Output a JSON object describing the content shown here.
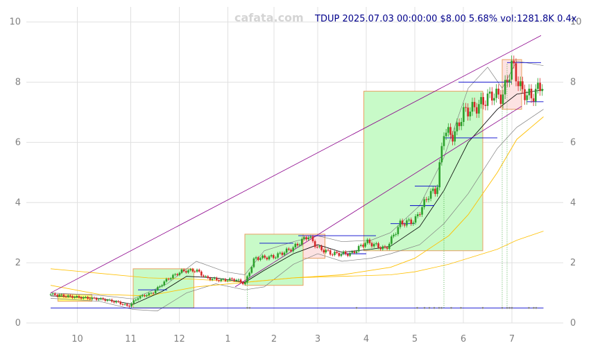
{
  "watermark": "cafata.com",
  "title": "TDUP 2025.07.03 00:00:00 $8.00 5.68% vol:1281.8K 0.4x",
  "chart_data": {
    "type": "candlestick",
    "x_tick_labels": [
      "10",
      "11",
      "12",
      "1",
      "2",
      "3",
      "4",
      "5",
      "6",
      "7"
    ],
    "x_tick_positions_month": [
      0.55,
      1.65,
      2.65,
      3.65,
      4.6,
      5.5,
      6.5,
      7.5,
      8.5,
      9.5
    ],
    "ylim": [
      0,
      10.5
    ],
    "y_ticks": [
      0,
      2,
      4,
      6,
      8,
      10
    ],
    "grid": true,
    "colors": {
      "up": "#2ca02c",
      "down": "#d62728",
      "box_up_fill": "#c8fac8",
      "box_down_fill": "#fde2e2",
      "box_edge": "#e8a060",
      "ma_fast": "#000000",
      "ma_band": "#808080",
      "ma_slow": "#ffc000",
      "trend": "#8b008b",
      "level": "#0000cd"
    },
    "close_series": [
      {
        "m": 0.0,
        "v": 0.95
      },
      {
        "m": 0.4,
        "v": 0.88
      },
      {
        "m": 0.8,
        "v": 0.82
      },
      {
        "m": 1.1,
        "v": 0.78
      },
      {
        "m": 1.4,
        "v": 0.68
      },
      {
        "m": 1.6,
        "v": 0.55
      },
      {
        "m": 1.8,
        "v": 0.85
      },
      {
        "m": 2.1,
        "v": 1.0
      },
      {
        "m": 2.4,
        "v": 1.45
      },
      {
        "m": 2.7,
        "v": 1.72
      },
      {
        "m": 3.0,
        "v": 1.75
      },
      {
        "m": 3.2,
        "v": 1.5
      },
      {
        "m": 3.5,
        "v": 1.42
      },
      {
        "m": 3.8,
        "v": 1.45
      },
      {
        "m": 4.0,
        "v": 1.3
      },
      {
        "m": 4.2,
        "v": 2.15
      },
      {
        "m": 4.6,
        "v": 2.2
      },
      {
        "m": 5.0,
        "v": 2.5
      },
      {
        "m": 5.3,
        "v": 2.9
      },
      {
        "m": 5.5,
        "v": 2.5
      },
      {
        "m": 5.8,
        "v": 2.3
      },
      {
        "m": 6.2,
        "v": 2.3
      },
      {
        "m": 6.5,
        "v": 2.7
      },
      {
        "m": 6.9,
        "v": 2.45
      },
      {
        "m": 7.2,
        "v": 3.3
      },
      {
        "m": 7.5,
        "v": 3.4
      },
      {
        "m": 7.8,
        "v": 4.3
      },
      {
        "m": 7.95,
        "v": 4.4
      },
      {
        "m": 8.1,
        "v": 6.4
      },
      {
        "m": 8.3,
        "v": 6.2
      },
      {
        "m": 8.5,
        "v": 7.0
      },
      {
        "m": 8.8,
        "v": 7.2
      },
      {
        "m": 9.1,
        "v": 7.6
      },
      {
        "m": 9.3,
        "v": 7.5
      },
      {
        "m": 9.5,
        "v": 8.6
      },
      {
        "m": 9.7,
        "v": 7.7
      },
      {
        "m": 9.9,
        "v": 7.5
      },
      {
        "m": 10.15,
        "v": 8.0
      }
    ],
    "ma_fast": [
      {
        "m": 0.0,
        "v": 0.9
      },
      {
        "m": 1.0,
        "v": 0.82
      },
      {
        "m": 1.7,
        "v": 0.62
      },
      {
        "m": 2.3,
        "v": 1.05
      },
      {
        "m": 2.8,
        "v": 1.55
      },
      {
        "m": 3.4,
        "v": 1.5
      },
      {
        "m": 4.0,
        "v": 1.35
      },
      {
        "m": 4.4,
        "v": 1.75
      },
      {
        "m": 5.0,
        "v": 2.3
      },
      {
        "m": 5.5,
        "v": 2.6
      },
      {
        "m": 6.0,
        "v": 2.35
      },
      {
        "m": 6.6,
        "v": 2.45
      },
      {
        "m": 7.0,
        "v": 2.55
      },
      {
        "m": 7.6,
        "v": 3.2
      },
      {
        "m": 8.1,
        "v": 4.4
      },
      {
        "m": 8.6,
        "v": 6.0
      },
      {
        "m": 9.2,
        "v": 7.1
      },
      {
        "m": 9.6,
        "v": 7.6
      },
      {
        "m": 10.15,
        "v": 7.75
      }
    ],
    "band_upper": [
      {
        "m": 0.0,
        "v": 1.0
      },
      {
        "m": 1.0,
        "v": 0.92
      },
      {
        "m": 1.7,
        "v": 0.8
      },
      {
        "m": 2.4,
        "v": 1.3
      },
      {
        "m": 3.0,
        "v": 2.05
      },
      {
        "m": 3.6,
        "v": 1.7
      },
      {
        "m": 4.0,
        "v": 1.6
      },
      {
        "m": 4.4,
        "v": 2.4
      },
      {
        "m": 5.0,
        "v": 2.7
      },
      {
        "m": 5.5,
        "v": 2.9
      },
      {
        "m": 6.0,
        "v": 2.7
      },
      {
        "m": 6.6,
        "v": 2.75
      },
      {
        "m": 7.0,
        "v": 3.0
      },
      {
        "m": 7.6,
        "v": 3.9
      },
      {
        "m": 8.1,
        "v": 5.5
      },
      {
        "m": 8.6,
        "v": 7.8
      },
      {
        "m": 9.0,
        "v": 8.5
      },
      {
        "m": 9.3,
        "v": 7.8
      },
      {
        "m": 9.6,
        "v": 8.7
      },
      {
        "m": 10.15,
        "v": 8.55
      }
    ],
    "band_lower": [
      {
        "m": 0.0,
        "v": 0.82
      },
      {
        "m": 1.0,
        "v": 0.72
      },
      {
        "m": 1.7,
        "v": 0.45
      },
      {
        "m": 2.2,
        "v": 0.4
      },
      {
        "m": 2.8,
        "v": 1.0
      },
      {
        "m": 3.4,
        "v": 1.3
      },
      {
        "m": 4.0,
        "v": 1.1
      },
      {
        "m": 4.4,
        "v": 1.2
      },
      {
        "m": 5.0,
        "v": 1.95
      },
      {
        "m": 5.5,
        "v": 2.3
      },
      {
        "m": 6.0,
        "v": 2.05
      },
      {
        "m": 6.6,
        "v": 2.15
      },
      {
        "m": 7.0,
        "v": 2.3
      },
      {
        "m": 7.6,
        "v": 2.6
      },
      {
        "m": 8.1,
        "v": 3.3
      },
      {
        "m": 8.6,
        "v": 4.3
      },
      {
        "m": 9.2,
        "v": 5.8
      },
      {
        "m": 9.6,
        "v": 6.5
      },
      {
        "m": 10.15,
        "v": 7.1
      }
    ],
    "ma_mid": [
      {
        "m": 0.0,
        "v": 1.25
      },
      {
        "m": 1.0,
        "v": 0.95
      },
      {
        "m": 2.0,
        "v": 0.9
      },
      {
        "m": 3.0,
        "v": 1.2
      },
      {
        "m": 4.0,
        "v": 1.35
      },
      {
        "m": 5.0,
        "v": 1.5
      },
      {
        "m": 6.0,
        "v": 1.6
      },
      {
        "m": 7.0,
        "v": 1.85
      },
      {
        "m": 7.5,
        "v": 2.15
      },
      {
        "m": 8.2,
        "v": 2.9
      },
      {
        "m": 8.6,
        "v": 3.6
      },
      {
        "m": 9.2,
        "v": 5.0
      },
      {
        "m": 9.6,
        "v": 6.1
      },
      {
        "m": 10.15,
        "v": 6.85
      }
    ],
    "ma_slow": [
      {
        "m": 0.0,
        "v": 1.8
      },
      {
        "m": 1.0,
        "v": 1.65
      },
      {
        "m": 2.0,
        "v": 1.5
      },
      {
        "m": 3.0,
        "v": 1.45
      },
      {
        "m": 4.0,
        "v": 1.35
      },
      {
        "m": 5.0,
        "v": 1.5
      },
      {
        "m": 6.0,
        "v": 1.55
      },
      {
        "m": 7.0,
        "v": 1.6
      },
      {
        "m": 7.5,
        "v": 1.7
      },
      {
        "m": 8.2,
        "v": 1.95
      },
      {
        "m": 8.6,
        "v": 2.15
      },
      {
        "m": 9.2,
        "v": 2.45
      },
      {
        "m": 9.6,
        "v": 2.75
      },
      {
        "m": 10.15,
        "v": 3.05
      }
    ],
    "trend_lines": [
      {
        "m1": 0.0,
        "v1": 1.0,
        "m2": 10.1,
        "v2": 9.55
      },
      {
        "m1": 3.8,
        "v1": 1.2,
        "m2": 9.7,
        "v2": 7.2
      }
    ],
    "boxes": [
      {
        "m1": 0.15,
        "m2": 0.85,
        "v1": 0.72,
        "v2": 0.95,
        "kind": "yellow"
      },
      {
        "m1": 1.7,
        "m2": 2.95,
        "v1": 0.5,
        "v2": 1.8,
        "kind": "up"
      },
      {
        "m1": 4.0,
        "m2": 5.2,
        "v1": 1.25,
        "v2": 2.95,
        "kind": "up"
      },
      {
        "m1": 5.2,
        "m2": 5.65,
        "v1": 2.15,
        "v2": 2.95,
        "kind": "down"
      },
      {
        "m1": 6.45,
        "m2": 8.9,
        "v1": 2.4,
        "v2": 7.7,
        "kind": "up"
      },
      {
        "m1": 9.3,
        "m2": 9.7,
        "v1": 7.1,
        "v2": 8.75,
        "kind": "down"
      }
    ],
    "level_lines": [
      {
        "m1": 0.0,
        "m2": 10.15,
        "v": 0.5
      },
      {
        "m1": 1.8,
        "m2": 2.4,
        "v": 1.1
      },
      {
        "m1": 4.3,
        "m2": 5.0,
        "v": 2.65
      },
      {
        "m1": 5.1,
        "m2": 6.7,
        "v": 2.9
      },
      {
        "m1": 6.0,
        "m2": 6.5,
        "v": 2.3
      },
      {
        "m1": 7.0,
        "m2": 7.5,
        "v": 3.3
      },
      {
        "m1": 7.4,
        "m2": 7.9,
        "v": 3.9
      },
      {
        "m1": 7.5,
        "m2": 8.0,
        "v": 4.55
      },
      {
        "m1": 8.1,
        "m2": 9.2,
        "v": 6.15
      },
      {
        "m1": 8.4,
        "m2": 9.5,
        "v": 8.0
      },
      {
        "m1": 9.4,
        "m2": 10.1,
        "v": 8.65
      },
      {
        "m1": 9.8,
        "m2": 10.15,
        "v": 7.35
      }
    ],
    "signal_lines": [
      {
        "m": 4.05,
        "v": 1.3
      },
      {
        "m": 8.1,
        "v": 4.4
      },
      {
        "m": 9.3,
        "v": 7.1
      },
      {
        "m": 9.4,
        "v": 8.6
      }
    ]
  }
}
